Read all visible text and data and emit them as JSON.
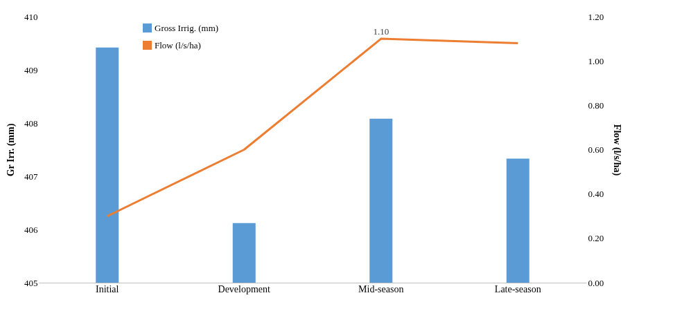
{
  "chart_data": {
    "type": "bar",
    "categories": [
      "Initial",
      "Development",
      "Mid-season",
      "Late-season"
    ],
    "ylabel": "Gr Irr. (mm)",
    "y2label": "Flow (l/s/ha)",
    "ylim": [
      405,
      410
    ],
    "yticks": [
      405,
      406,
      407,
      408,
      409,
      410
    ],
    "y2lim": [
      0,
      1.2
    ],
    "y2ticks": [
      {
        "value": 0,
        "label": "0.00"
      },
      {
        "value": 0.2,
        "label": "0.20"
      },
      {
        "value": 0.4,
        "label": "0.40"
      },
      {
        "value": 0.6,
        "label": "0.60"
      },
      {
        "value": 0.8,
        "label": "0.80"
      },
      {
        "value": 1.0,
        "label": "1.00"
      },
      {
        "value": 1.2,
        "label": "1.20"
      }
    ],
    "series": [
      {
        "name": "Gross Irrig. (mm)",
        "color": "#5b9bd5",
        "values": [
          409.42,
          406.12,
          408.08,
          407.33
        ]
      },
      {
        "name": "Flow (l/s/ha)",
        "type": "line",
        "axis": "y2",
        "color": "#ed7d31",
        "values": [
          0.3,
          0.6,
          1.1,
          1.08
        ],
        "value_labels": [
          null,
          null,
          "1.10",
          null
        ]
      }
    ],
    "legend": "top left",
    "grid": false
  }
}
